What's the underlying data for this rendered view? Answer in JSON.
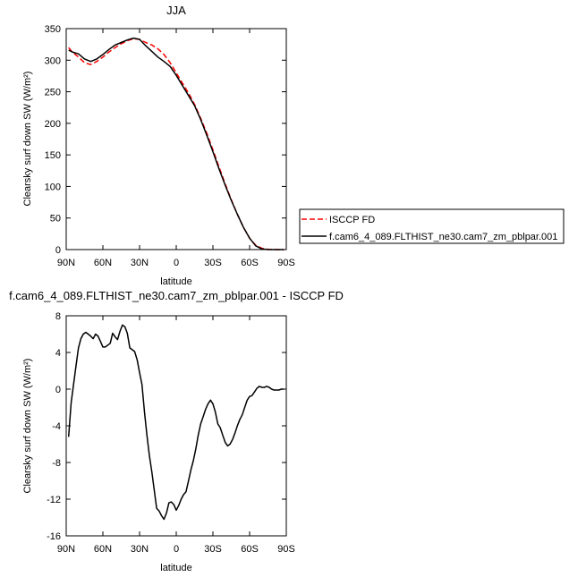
{
  "chart_data": [
    {
      "type": "line",
      "title": "JJA",
      "xlabel": "latitude",
      "ylabel": "Clearsky surf down SW (W/m²)",
      "xlim": [
        90,
        -90
      ],
      "ylim": [
        0,
        350
      ],
      "xtick_values": [
        90,
        60,
        30,
        0,
        -30,
        -60,
        -90
      ],
      "xtick_labels": [
        "90N",
        "60N",
        "30N",
        "0",
        "30S",
        "60S",
        "90S"
      ],
      "ytick_values": [
        0,
        50,
        100,
        150,
        200,
        250,
        300,
        350
      ],
      "ytick_labels": [
        "0",
        "50",
        "100",
        "150",
        "200",
        "250",
        "300",
        "350"
      ],
      "legend_position": "right",
      "series": [
        {
          "name": "ISCCP FD",
          "color": "#ff0000",
          "dash": "dashed",
          "x": [
            88,
            85,
            80,
            75,
            70,
            65,
            60,
            55,
            50,
            45,
            40,
            35,
            30,
            25,
            20,
            15,
            10,
            5,
            0,
            -5,
            -10,
            -15,
            -20,
            -25,
            -30,
            -35,
            -40,
            -45,
            -50,
            -55,
            -60,
            -65,
            -70,
            -75,
            -80,
            -85,
            -88
          ],
          "y": [
            320,
            313,
            305,
            296,
            293,
            298,
            305,
            313,
            320,
            326,
            331,
            334,
            333,
            328,
            324,
            318,
            309,
            296,
            280,
            264,
            248,
            230,
            208,
            184,
            158,
            131,
            104,
            79,
            56,
            35,
            18,
            7,
            2,
            0.5,
            0,
            0,
            0
          ]
        },
        {
          "name": "f.cam6_4_089.FLTHIST_ne30.cam7_zm_pblpar.001",
          "color": "#000000",
          "dash": "solid",
          "x": [
            88,
            85,
            80,
            75,
            70,
            65,
            60,
            55,
            50,
            45,
            40,
            35,
            30,
            25,
            20,
            15,
            10,
            5,
            0,
            -5,
            -10,
            -15,
            -20,
            -25,
            -30,
            -35,
            -40,
            -45,
            -50,
            -55,
            -60,
            -65,
            -70,
            -75,
            -80,
            -85,
            -88
          ],
          "y": [
            316,
            313,
            310,
            302,
            298,
            302,
            309,
            317,
            324,
            328,
            332,
            335,
            333,
            323,
            314,
            305,
            298,
            290,
            276,
            260,
            244,
            228,
            206,
            181,
            155,
            128,
            102,
            78,
            56,
            35,
            18,
            6,
            1,
            0,
            0,
            0,
            0
          ]
        }
      ]
    },
    {
      "type": "line",
      "title": "f.cam6_4_089.FLTHIST_ne30.cam7_zm_pblpar.001 - ISCCP FD",
      "xlabel": "latitude",
      "ylabel": "Clearsky surf down SW (W/m²)",
      "xlim": [
        90,
        -90
      ],
      "ylim": [
        -16,
        8
      ],
      "xtick_values": [
        90,
        60,
        30,
        0,
        -30,
        -60,
        -90
      ],
      "xtick_labels": [
        "90N",
        "60N",
        "30N",
        "0",
        "30S",
        "60S",
        "90S"
      ],
      "ytick_values": [
        -16,
        -12,
        -8,
        -4,
        0,
        4,
        8
      ],
      "ytick_labels": [
        "-16",
        "-12",
        "-8",
        "-4",
        "0",
        "4",
        "8"
      ],
      "series": [
        {
          "color": "#000000",
          "dash": "solid",
          "x": [
            88,
            86,
            84,
            82,
            80,
            78,
            76,
            74,
            72,
            70,
            68,
            66,
            64,
            62,
            60,
            58,
            56,
            54,
            52,
            50,
            48,
            46,
            44,
            42,
            40,
            38,
            36,
            34,
            32,
            30,
            28,
            26,
            24,
            22,
            20,
            18,
            16,
            14,
            12,
            10,
            8,
            6,
            4,
            2,
            0,
            -2,
            -4,
            -6,
            -8,
            -10,
            -12,
            -14,
            -16,
            -18,
            -20,
            -22,
            -24,
            -26,
            -28,
            -30,
            -32,
            -34,
            -36,
            -38,
            -40,
            -42,
            -44,
            -46,
            -48,
            -50,
            -52,
            -54,
            -56,
            -58,
            -60,
            -62,
            -64,
            -66,
            -68,
            -70,
            -72,
            -74,
            -76,
            -78,
            -80,
            -82,
            -84,
            -86,
            -88
          ],
          "y": [
            -5.2,
            -1.5,
            0.5,
            2.5,
            4.5,
            5.5,
            6.0,
            6.2,
            6.0,
            5.8,
            5.5,
            6.0,
            5.8,
            5.2,
            4.6,
            4.6,
            4.8,
            5.0,
            6.1,
            5.7,
            5.4,
            6.3,
            7.0,
            6.8,
            6.1,
            4.5,
            4.3,
            4.1,
            3.2,
            1.8,
            0.5,
            -2.5,
            -5.0,
            -7.2,
            -9.0,
            -11.0,
            -13.0,
            -13.3,
            -13.8,
            -14.2,
            -13.5,
            -12.4,
            -12.3,
            -12.6,
            -13.2,
            -12.7,
            -12.0,
            -11.5,
            -11.2,
            -10.0,
            -8.8,
            -7.8,
            -6.5,
            -5.0,
            -3.8,
            -3.0,
            -2.2,
            -1.6,
            -1.2,
            -1.6,
            -2.5,
            -3.8,
            -4.2,
            -5.0,
            -5.8,
            -6.2,
            -6.0,
            -5.5,
            -4.8,
            -4.0,
            -3.3,
            -2.8,
            -2.0,
            -1.2,
            -0.8,
            -0.7,
            -0.3,
            0.1,
            0.3,
            0.2,
            0.2,
            0.3,
            0.2,
            0.0,
            -0.1,
            -0.1,
            -0.1,
            0.0,
            0.0
          ]
        }
      ]
    }
  ]
}
